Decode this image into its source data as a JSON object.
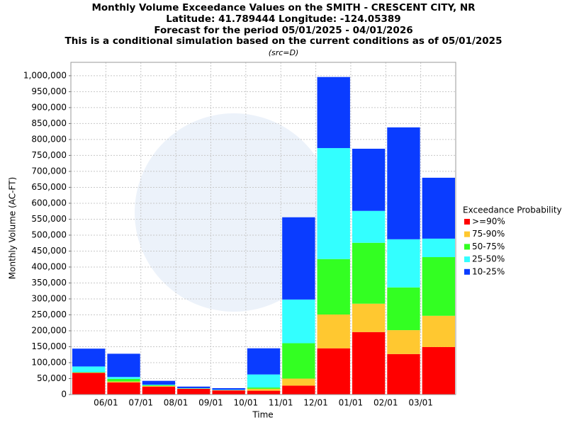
{
  "chart_data": {
    "type": "stacked_bar",
    "title": [
      "Monthly Volume Exceedance Values on the SMITH - CRESCENT CITY, NR",
      "Latitude: 41.789444 Longitude: -124.05389",
      "Forecast for the period 05/01/2025 - 04/01/2026",
      "This is a conditional simulation based on the current conditions as of 05/01/2025"
    ],
    "subtitle": "(src=D)",
    "x_label": "Time",
    "y_label": "Monthly Volume (AC-FT)",
    "xticks": [
      "06/01",
      "07/01",
      "08/01",
      "09/01",
      "10/01",
      "11/01",
      "12/01",
      "01/01",
      "02/01",
      "03/01"
    ],
    "legend_title": "Exceedance Probability",
    "legend_position": "right",
    "grid": true,
    "ylim": [
      0,
      1042000
    ],
    "yticks": [
      0,
      {
        "value": 50000,
        "label": "50,000"
      },
      {
        "value": 100000,
        "label": "100,000"
      },
      {
        "value": 150000,
        "label": "150,000"
      },
      {
        "value": 200000,
        "label": "200,000"
      },
      {
        "value": 250000,
        "label": "250,000"
      },
      {
        "value": 300000,
        "label": "300,000"
      },
      {
        "value": 350000,
        "label": "350,000"
      },
      {
        "value": 400000,
        "label": "400,000"
      },
      {
        "value": 450000,
        "label": "450,000"
      },
      {
        "value": 500000,
        "label": "500,000"
      },
      {
        "value": 550000,
        "label": "550,000"
      },
      {
        "value": 600000,
        "label": "600,000"
      },
      {
        "value": 650000,
        "label": "650,000"
      },
      {
        "value": 700000,
        "label": "700,000"
      },
      {
        "value": 750000,
        "label": "750,000"
      },
      {
        "value": 800000,
        "label": "800,000"
      },
      {
        "value": 850000,
        "label": "850,000"
      },
      {
        "value": 900000,
        "label": "900,000"
      },
      {
        "value": 950000,
        "label": "950,000"
      },
      {
        "value": 1000000,
        "label": "1,000,000"
      }
    ],
    "series": [
      {
        "name": ">=90%",
        "color": "#ff0000",
        "values": [
          68000,
          38000,
          25000,
          18000,
          13000,
          12000,
          28000,
          145000,
          196000,
          127000,
          149000
        ]
      },
      {
        "name": "75-90%",
        "color": "#ffc830",
        "values": [
          1000,
          3000,
          2000,
          500,
          500,
          6000,
          22000,
          106000,
          89000,
          75000,
          98000
        ]
      },
      {
        "name": "50-75%",
        "color": "#33ff22",
        "values": [
          1000,
          8000,
          2000,
          500,
          500,
          4000,
          111000,
          174000,
          191000,
          134000,
          184000
        ]
      },
      {
        "name": "25-50%",
        "color": "#33ffff",
        "values": [
          18000,
          6000,
          2000,
          1000,
          1000,
          41000,
          137000,
          348000,
          100000,
          151000,
          58000
        ]
      },
      {
        "name": "10-25%",
        "color": "#0a3cff",
        "values": [
          56000,
          73000,
          12000,
          5000,
          5000,
          82000,
          258000,
          223000,
          195000,
          351000,
          191000
        ]
      }
    ]
  }
}
